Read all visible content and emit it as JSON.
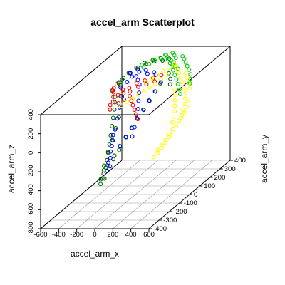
{
  "chart_data": {
    "type": "scatter3d",
    "title": "accel_arm Scatterplot",
    "xlabel": "accel_arm_x",
    "ylabel": "accel_arm_y",
    "zlabel": "accel_arm_z",
    "xlim": [
      -600,
      600
    ],
    "ylim": [
      -400,
      400
    ],
    "zlim": [
      -800,
      400
    ],
    "x_ticks": [
      "-600",
      "-400",
      "-200",
      "0",
      "200",
      "400",
      "600"
    ],
    "y_ticks": [
      "-400",
      "-300",
      "-200",
      "-100",
      "0",
      "100",
      "200",
      "300",
      "400"
    ],
    "z_ticks": [
      "-800",
      "-600",
      "-400",
      "-200",
      "0",
      "200",
      "400"
    ],
    "grid": true,
    "series": [
      {
        "name": "darkgreen",
        "color": "#006400",
        "points": [
          [
            -420,
            210,
            180
          ],
          [
            -400,
            190,
            210
          ],
          [
            -430,
            160,
            150
          ],
          [
            -380,
            220,
            230
          ],
          [
            -350,
            180,
            250
          ],
          [
            -320,
            230,
            270
          ],
          [
            -300,
            200,
            300
          ],
          [
            -260,
            240,
            320
          ],
          [
            -220,
            220,
            340
          ],
          [
            -180,
            250,
            360
          ],
          [
            -140,
            230,
            370
          ],
          [
            -100,
            260,
            380
          ],
          [
            -60,
            240,
            385
          ],
          [
            -20,
            270,
            390
          ],
          [
            20,
            250,
            385
          ],
          [
            60,
            280,
            380
          ],
          [
            -360,
            120,
            120
          ],
          [
            -330,
            90,
            90
          ],
          [
            -300,
            60,
            40
          ],
          [
            -280,
            30,
            -20
          ],
          [
            -260,
            0,
            -80
          ],
          [
            -240,
            -30,
            -150
          ],
          [
            -220,
            -60,
            -220
          ],
          [
            -200,
            -90,
            -280
          ],
          [
            -180,
            -120,
            -330
          ],
          [
            -160,
            -150,
            -380
          ],
          [
            -150,
            -180,
            -420
          ],
          [
            -140,
            -200,
            -450
          ],
          [
            -170,
            -160,
            -400
          ],
          [
            -190,
            -140,
            -370
          ],
          [
            -120,
            -100,
            -300
          ],
          [
            -100,
            -60,
            -240
          ],
          [
            -80,
            -20,
            -180
          ],
          [
            -60,
            20,
            -120
          ],
          [
            -40,
            60,
            -60
          ],
          [
            -20,
            100,
            0
          ],
          [
            0,
            140,
            60
          ],
          [
            20,
            180,
            120
          ],
          [
            40,
            210,
            180
          ],
          [
            -330,
            150,
            100
          ],
          [
            -390,
            200,
            170
          ],
          [
            -410,
            230,
            200
          ],
          [
            -250,
            60,
            -40
          ],
          [
            -230,
            10,
            -110
          ],
          [
            -210,
            -40,
            -190
          ],
          [
            -190,
            -100,
            -260
          ],
          [
            -130,
            -160,
            -350
          ],
          [
            -110,
            -120,
            -320
          ],
          [
            -90,
            -80,
            -260
          ],
          [
            100,
            240,
            260
          ],
          [
            140,
            220,
            220
          ],
          [
            160,
            200,
            180
          ],
          [
            -160,
            -200,
            -460
          ],
          [
            -150,
            -210,
            -500
          ],
          [
            -140,
            -180,
            -470
          ]
        ]
      },
      {
        "name": "blue",
        "color": "#0000ff",
        "points": [
          [
            -200,
            200,
            340
          ],
          [
            -160,
            180,
            330
          ],
          [
            -120,
            210,
            320
          ],
          [
            -80,
            190,
            300
          ],
          [
            -40,
            220,
            290
          ],
          [
            0,
            200,
            280
          ],
          [
            -260,
            150,
            250
          ],
          [
            -300,
            120,
            220
          ],
          [
            -240,
            80,
            160
          ],
          [
            -220,
            40,
            80
          ],
          [
            -200,
            0,
            0
          ],
          [
            -180,
            -40,
            -80
          ],
          [
            -160,
            -80,
            -160
          ],
          [
            -140,
            -120,
            -240
          ],
          [
            -120,
            -160,
            -320
          ],
          [
            -100,
            -190,
            -380
          ],
          [
            -60,
            -100,
            -200
          ],
          [
            -40,
            -60,
            -140
          ],
          [
            -20,
            -20,
            -80
          ],
          [
            0,
            20,
            -20
          ],
          [
            20,
            60,
            40
          ],
          [
            40,
            100,
            100
          ],
          [
            60,
            140,
            160
          ],
          [
            80,
            180,
            220
          ],
          [
            -170,
            160,
            300
          ],
          [
            -130,
            140,
            280
          ],
          [
            -90,
            120,
            250
          ],
          [
            -50,
            80,
            200
          ],
          [
            -10,
            40,
            150
          ],
          [
            30,
            0,
            100
          ],
          [
            60,
            -40,
            40
          ],
          [
            80,
            -80,
            -20
          ],
          [
            100,
            -120,
            -80
          ],
          [
            -180,
            -60,
            -120
          ],
          [
            -150,
            -100,
            -200
          ],
          [
            -120,
            -140,
            -290
          ],
          [
            -90,
            -170,
            -350
          ],
          [
            -240,
            180,
            280
          ],
          [
            -280,
            200,
            300
          ]
        ]
      },
      {
        "name": "red",
        "color": "#ff0000",
        "points": [
          [
            -430,
            170,
            170
          ],
          [
            -410,
            150,
            140
          ],
          [
            -390,
            130,
            110
          ],
          [
            -370,
            110,
            80
          ],
          [
            -350,
            140,
            120
          ],
          [
            -330,
            170,
            150
          ],
          [
            -300,
            150,
            130
          ],
          [
            -270,
            180,
            160
          ],
          [
            -240,
            160,
            140
          ],
          [
            -200,
            190,
            200
          ],
          [
            -160,
            170,
            180
          ],
          [
            -120,
            200,
            220
          ],
          [
            -80,
            180,
            200
          ],
          [
            -40,
            210,
            240
          ],
          [
            0,
            190,
            220
          ],
          [
            40,
            220,
            260
          ],
          [
            -380,
            90,
            60
          ],
          [
            -360,
            70,
            30
          ],
          [
            -220,
            140,
            110
          ],
          [
            -180,
            120,
            80
          ],
          [
            -140,
            100,
            50
          ],
          [
            -100,
            80,
            20
          ],
          [
            -60,
            60,
            -10
          ],
          [
            -20,
            40,
            -40
          ],
          [
            -260,
            120,
            90
          ],
          [
            -420,
            190,
            190
          ],
          [
            -440,
            160,
            150
          ],
          [
            -300,
            100,
            70
          ]
        ]
      },
      {
        "name": "green",
        "color": "#00cc00",
        "points": [
          [
            -100,
            280,
            360
          ],
          [
            -60,
            300,
            370
          ],
          [
            -20,
            320,
            380
          ],
          [
            20,
            300,
            375
          ],
          [
            60,
            330,
            370
          ],
          [
            100,
            310,
            360
          ],
          [
            140,
            340,
            350
          ],
          [
            180,
            320,
            340
          ],
          [
            220,
            300,
            320
          ],
          [
            260,
            280,
            300
          ],
          [
            300,
            260,
            280
          ],
          [
            340,
            240,
            250
          ],
          [
            360,
            220,
            220
          ],
          [
            380,
            200,
            190
          ],
          [
            -140,
            260,
            340
          ],
          [
            -180,
            240,
            320
          ],
          [
            -220,
            260,
            330
          ],
          [
            80,
            270,
            340
          ],
          [
            120,
            250,
            320
          ],
          [
            160,
            230,
            300
          ],
          [
            200,
            210,
            270
          ],
          [
            240,
            190,
            240
          ],
          [
            280,
            170,
            210
          ],
          [
            320,
            150,
            170
          ],
          [
            350,
            130,
            140
          ],
          [
            30,
            340,
            385
          ],
          [
            -40,
            330,
            375
          ],
          [
            0,
            290,
            360
          ],
          [
            70,
            290,
            350
          ],
          [
            110,
            280,
            340
          ],
          [
            150,
            260,
            320
          ],
          [
            190,
            250,
            300
          ]
        ]
      },
      {
        "name": "yellow",
        "color": "#ffff00",
        "points": [
          [
            260,
            200,
            300
          ],
          [
            300,
            180,
            270
          ],
          [
            340,
            160,
            240
          ],
          [
            380,
            140,
            200
          ],
          [
            420,
            120,
            160
          ],
          [
            440,
            100,
            120
          ],
          [
            450,
            80,
            80
          ],
          [
            460,
            60,
            40
          ],
          [
            470,
            40,
            0
          ],
          [
            460,
            20,
            -40
          ],
          [
            450,
            0,
            -80
          ],
          [
            440,
            -20,
            -120
          ],
          [
            420,
            -40,
            -160
          ],
          [
            400,
            -60,
            -200
          ],
          [
            380,
            -80,
            -240
          ],
          [
            360,
            -100,
            -270
          ],
          [
            340,
            -120,
            -300
          ],
          [
            220,
            220,
            320
          ],
          [
            180,
            240,
            330
          ],
          [
            140,
            260,
            340
          ],
          [
            100,
            240,
            320
          ],
          [
            60,
            220,
            300
          ],
          [
            20,
            200,
            280
          ],
          [
            -20,
            180,
            260
          ],
          [
            -60,
            160,
            240
          ],
          [
            320,
            210,
            290
          ],
          [
            360,
            190,
            260
          ],
          [
            400,
            170,
            220
          ],
          [
            430,
            150,
            180
          ],
          [
            480,
            90,
            100
          ],
          [
            490,
            70,
            60
          ],
          [
            485,
            50,
            20
          ],
          [
            475,
            30,
            -20
          ],
          [
            430,
            -10,
            -100
          ],
          [
            410,
            -30,
            -140
          ],
          [
            390,
            -50,
            -180
          ],
          [
            370,
            -70,
            -220
          ],
          [
            350,
            -90,
            -250
          ],
          [
            300,
            120,
            200
          ],
          [
            330,
            100,
            160
          ],
          [
            350,
            80,
            120
          ],
          [
            370,
            60,
            80
          ],
          [
            390,
            40,
            40
          ],
          [
            400,
            20,
            0
          ],
          [
            410,
            0,
            -40
          ],
          [
            120,
            200,
            280
          ],
          [
            80,
            180,
            250
          ],
          [
            40,
            160,
            220
          ],
          [
            0,
            140,
            200
          ],
          [
            -40,
            120,
            180
          ],
          [
            -80,
            100,
            160
          ],
          [
            -120,
            80,
            140
          ],
          [
            -160,
            60,
            120
          ],
          [
            -200,
            40,
            100
          ]
        ]
      }
    ]
  }
}
